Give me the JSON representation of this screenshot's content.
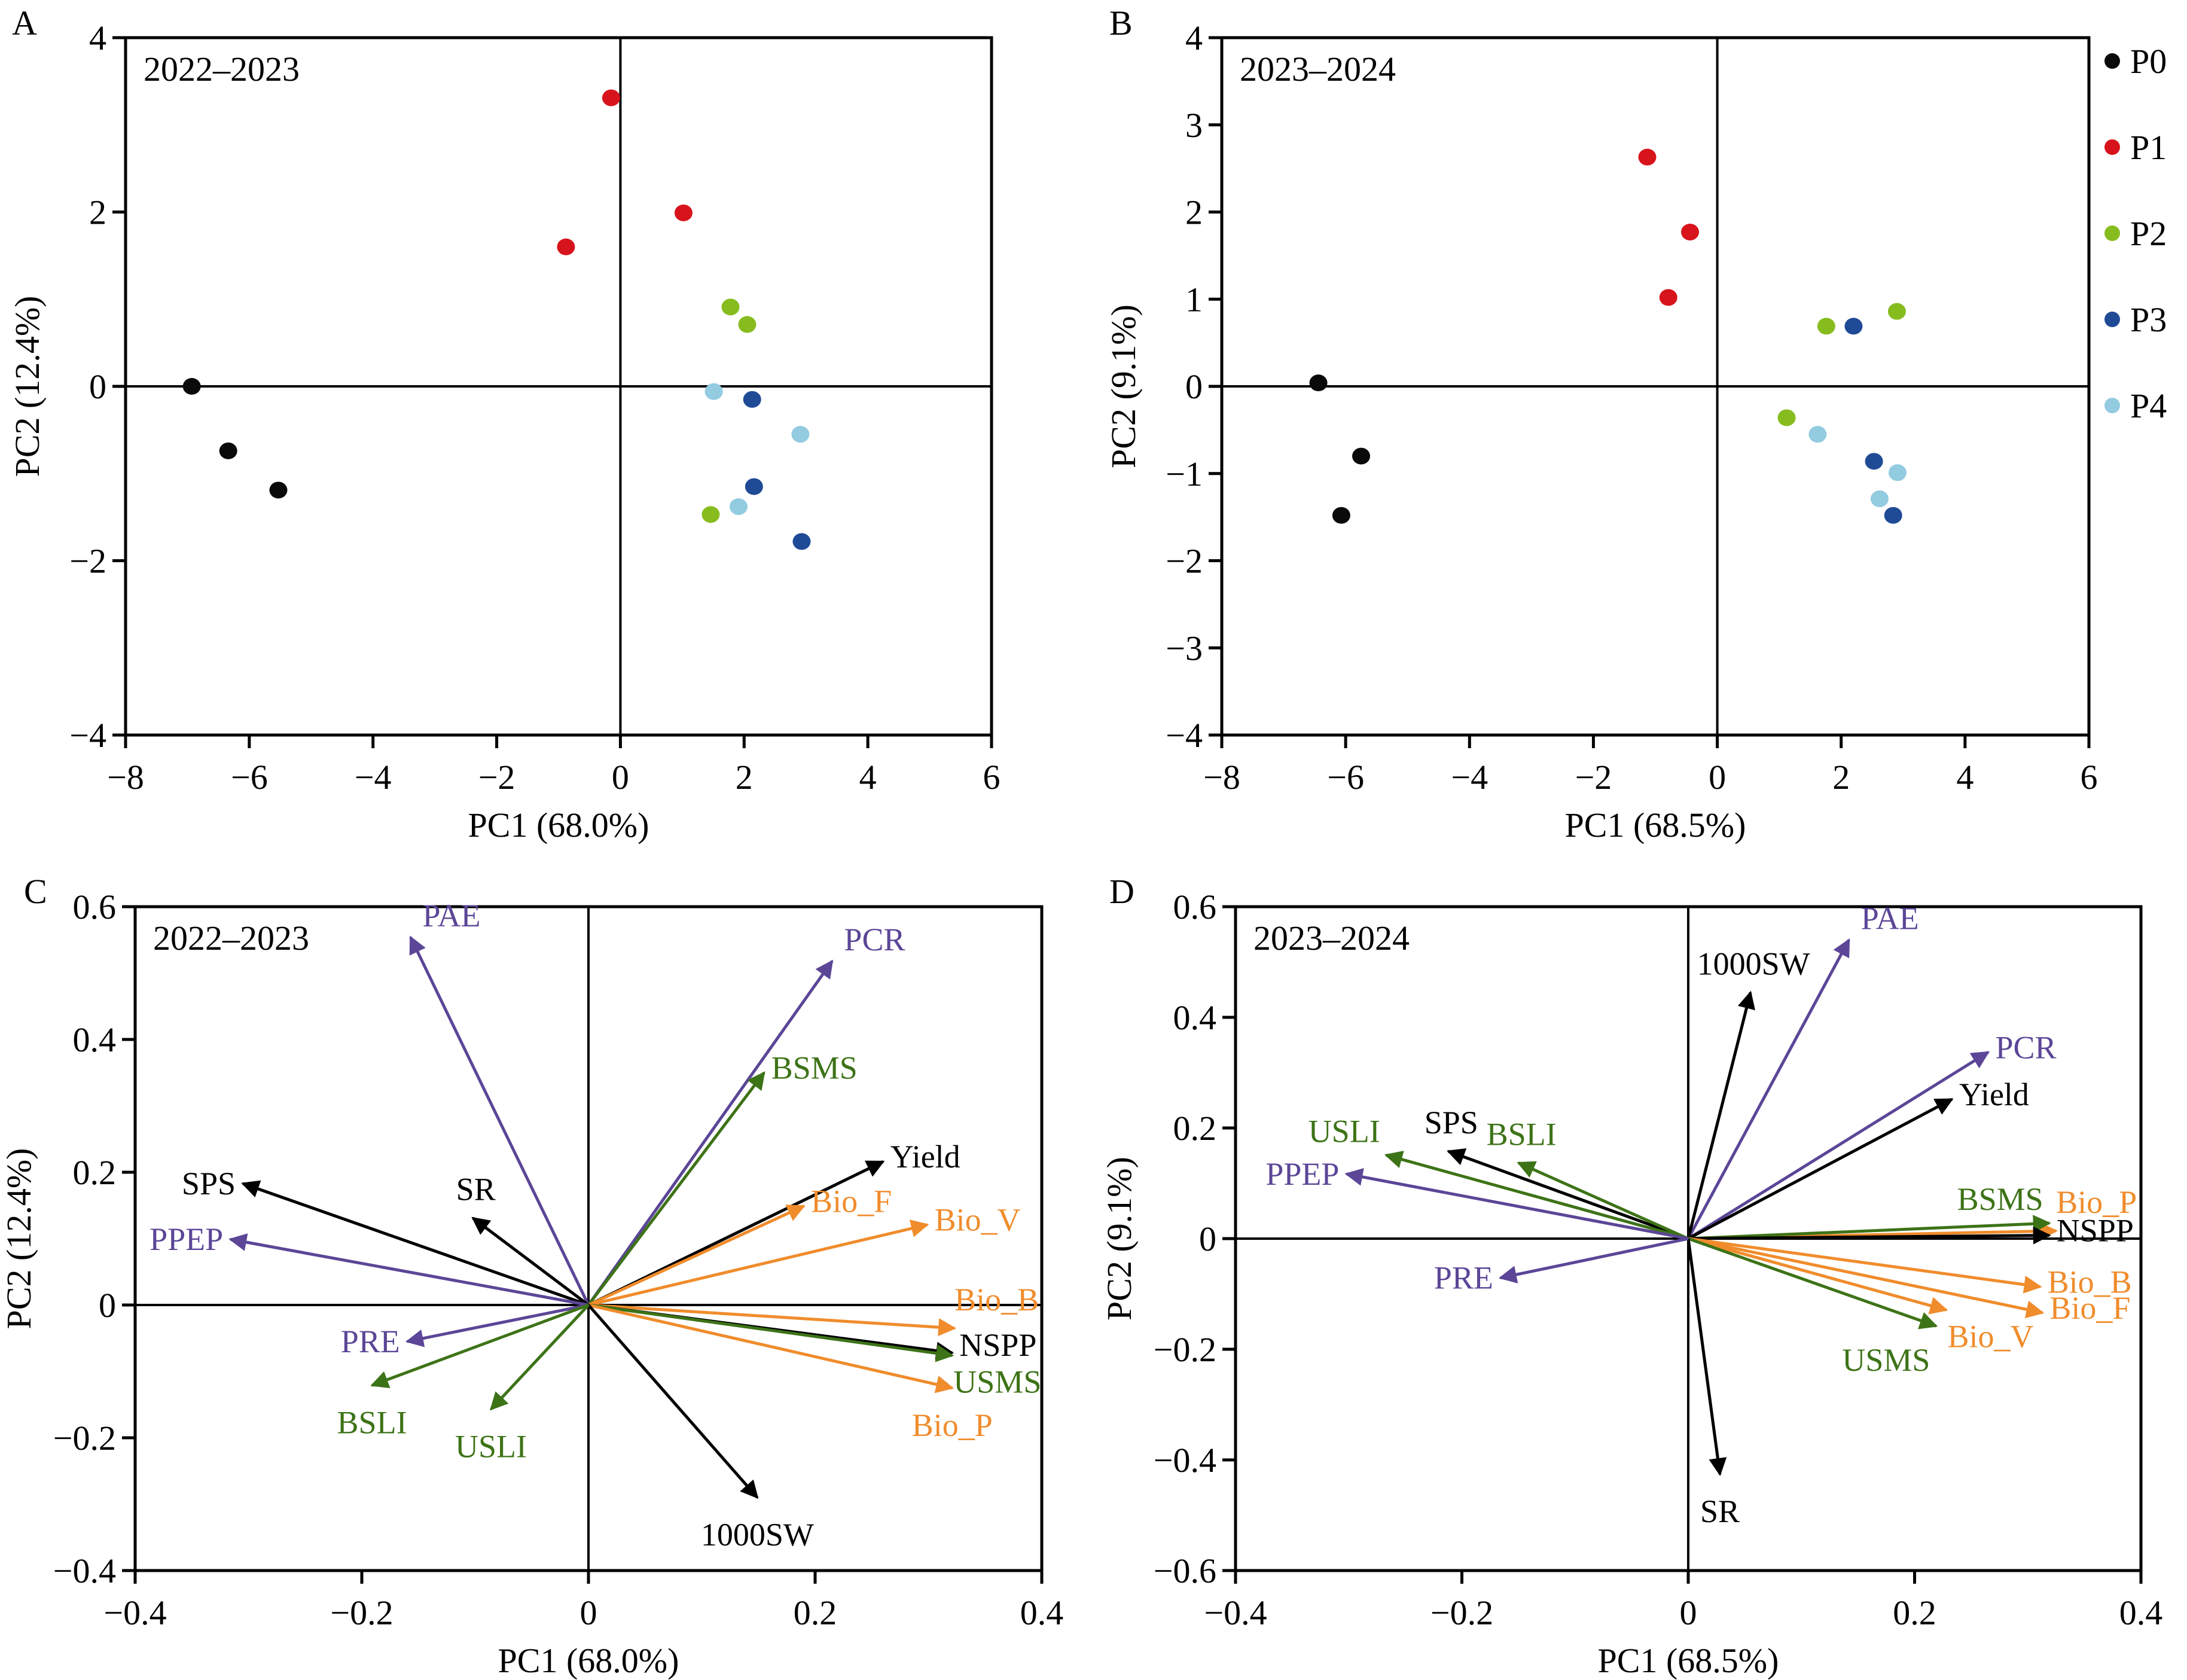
{
  "figure": {
    "colors": {
      "P0": "#0a0a0a",
      "P1": "#d7141c",
      "P2": "#86bc1e",
      "P3": "#1f4a96",
      "P4": "#93cbe0",
      "purple": "#5b4697",
      "green": "#3d7317",
      "orange": "#f08c2c",
      "black": "#000000"
    }
  },
  "chart_data": [
    {
      "panel": "A",
      "type": "scatter",
      "title": "2022–2023",
      "xlabel": "PC1 (68.0%)",
      "ylabel": "PC2 (12.4%)",
      "xlim": [
        -8,
        6
      ],
      "ylim": [
        -4,
        4
      ],
      "xticks": [
        "-8",
        "-6",
        "-4",
        "-2",
        "0",
        "2",
        "4",
        "6"
      ],
      "yticks": [
        "-4",
        "-2",
        "0",
        "2",
        "4"
      ],
      "grid": false,
      "series": [
        {
          "name": "P0",
          "points": [
            [
              -6.93,
              0.0
            ],
            [
              -6.34,
              -0.74
            ],
            [
              -5.53,
              -1.19
            ]
          ]
        },
        {
          "name": "P1",
          "points": [
            [
              -0.15,
              3.31
            ],
            [
              -0.88,
              1.6
            ],
            [
              1.02,
              1.99
            ]
          ]
        },
        {
          "name": "P2",
          "points": [
            [
              1.78,
              0.91
            ],
            [
              2.05,
              0.71
            ],
            [
              1.46,
              -1.47
            ]
          ]
        },
        {
          "name": "P3",
          "points": [
            [
              2.13,
              -0.15
            ],
            [
              2.16,
              -1.15
            ],
            [
              2.93,
              -1.78
            ]
          ]
        },
        {
          "name": "P4",
          "points": [
            [
              1.51,
              -0.06
            ],
            [
              2.91,
              -0.55
            ],
            [
              1.91,
              -1.38
            ]
          ]
        }
      ]
    },
    {
      "panel": "B",
      "type": "scatter",
      "title": "2023–2024",
      "xlabel": "PC1 (68.5%)",
      "ylabel": "PC2 (9.1%)",
      "xlim": [
        -8,
        6
      ],
      "ylim": [
        -4,
        4
      ],
      "xticks": [
        "-8",
        "-6",
        "-4",
        "-2",
        "0",
        "2",
        "4",
        "6"
      ],
      "yticks": [
        "-4",
        "-3",
        "-2",
        "-1",
        "0",
        "1",
        "2",
        "3",
        "4"
      ],
      "grid": false,
      "legend": {
        "placement": "right",
        "entries": [
          "P0",
          "P1",
          "P2",
          "P3",
          "P4"
        ]
      },
      "series": [
        {
          "name": "P0",
          "points": [
            [
              -6.44,
              0.04
            ],
            [
              -5.75,
              -0.8
            ],
            [
              -6.07,
              -1.48
            ]
          ]
        },
        {
          "name": "P1",
          "points": [
            [
              -1.13,
              2.63
            ],
            [
              -0.44,
              1.77
            ],
            [
              -0.79,
              1.02
            ]
          ]
        },
        {
          "name": "P2",
          "points": [
            [
              1.76,
              0.69
            ],
            [
              2.9,
              0.86
            ],
            [
              1.12,
              -0.36
            ]
          ]
        },
        {
          "name": "P3",
          "points": [
            [
              2.2,
              0.69
            ],
            [
              2.53,
              -0.86
            ],
            [
              2.84,
              -1.48
            ]
          ]
        },
        {
          "name": "P4",
          "points": [
            [
              1.62,
              -0.55
            ],
            [
              2.91,
              -0.99
            ],
            [
              2.62,
              -1.29
            ]
          ]
        }
      ]
    },
    {
      "panel": "C",
      "type": "biplot-loadings",
      "title": "2022–2023",
      "xlabel": "PC1 (68.0%)",
      "ylabel": "PC2 (12.4%)",
      "xlim": [
        -0.4,
        0.4
      ],
      "ylim": [
        -0.4,
        0.6
      ],
      "xticks": [
        "-0.4",
        "-0.2",
        "0",
        "0.2",
        "0.4"
      ],
      "yticks": [
        "-0.4",
        "-0.2",
        "0",
        "0.2",
        "0.4",
        "0.6"
      ],
      "grid": false,
      "vectors": [
        {
          "name": "PAE",
          "group": "purple",
          "x": -0.157,
          "y": 0.554,
          "label_at": "tip-up"
        },
        {
          "name": "PCR",
          "group": "purple",
          "x": 0.215,
          "y": 0.518,
          "label_at": "tip-up"
        },
        {
          "name": "BSMS",
          "group": "green",
          "x": 0.155,
          "y": 0.35,
          "label_at": "right"
        },
        {
          "name": "Yield",
          "group": "black",
          "x": 0.26,
          "y": 0.216,
          "label_at": "right"
        },
        {
          "name": "Bio_F",
          "group": "orange",
          "x": 0.19,
          "y": 0.149,
          "label_at": "right"
        },
        {
          "name": "Bio_V",
          "group": "orange",
          "x": 0.299,
          "y": 0.121,
          "label_at": "right"
        },
        {
          "name": "Bio_B",
          "group": "orange",
          "x": 0.323,
          "y": -0.035,
          "label_at": "above-right"
        },
        {
          "name": "NSPP",
          "group": "black",
          "x": 0.321,
          "y": -0.072,
          "label_at": "right-up"
        },
        {
          "name": "USMS",
          "group": "green",
          "x": 0.321,
          "y": -0.076,
          "label_at": "right-down"
        },
        {
          "name": "Bio_P",
          "group": "orange",
          "x": 0.321,
          "y": -0.125,
          "label_at": "below"
        },
        {
          "name": "1000SW",
          "group": "black",
          "x": 0.149,
          "y": -0.29,
          "label_at": "below"
        },
        {
          "name": "SPS",
          "group": "black",
          "x": -0.305,
          "y": 0.183,
          "label_at": "left"
        },
        {
          "name": "SR",
          "group": "black",
          "x": -0.102,
          "y": 0.131,
          "label_at": "above"
        },
        {
          "name": "PPEP",
          "group": "purple",
          "x": -0.316,
          "y": 0.099,
          "label_at": "left"
        },
        {
          "name": "PRE",
          "group": "purple",
          "x": -0.16,
          "y": -0.055,
          "label_at": "left"
        },
        {
          "name": "BSLI",
          "group": "green",
          "x": -0.191,
          "y": -0.121,
          "label_at": "below"
        },
        {
          "name": "USLI",
          "group": "green",
          "x": -0.086,
          "y": -0.157,
          "label_at": "below"
        }
      ]
    },
    {
      "panel": "D",
      "type": "biplot-loadings",
      "title": "2023–2024",
      "xlabel": "PC1 (68.5%)",
      "ylabel": "PC2 (9.1%)",
      "xlim": [
        -0.4,
        0.4
      ],
      "ylim": [
        -0.6,
        0.6
      ],
      "xticks": [
        "-0.4",
        "-0.2",
        "0",
        "0.2",
        "0.4"
      ],
      "yticks": [
        "-0.6",
        "-0.4",
        "-0.2",
        "0",
        "0.2",
        "0.4",
        "0.6"
      ],
      "grid": false,
      "vectors": [
        {
          "name": "PAE",
          "group": "purple",
          "x": 0.142,
          "y": 0.54,
          "label_at": "tip-up"
        },
        {
          "name": "1000SW",
          "group": "black",
          "x": 0.055,
          "y": 0.445,
          "label_at": "above"
        },
        {
          "name": "PCR",
          "group": "purple",
          "x": 0.265,
          "y": 0.337,
          "label_at": "right"
        },
        {
          "name": "Yield",
          "group": "black",
          "x": 0.233,
          "y": 0.252,
          "label_at": "right"
        },
        {
          "name": "Bio_P",
          "group": "orange",
          "x": 0.325,
          "y": 0.014,
          "label_at": "above-right"
        },
        {
          "name": "BSMS",
          "group": "green",
          "x": 0.319,
          "y": 0.028,
          "label_at": "above-left"
        },
        {
          "name": "NSPP",
          "group": "black",
          "x": 0.319,
          "y": 0.006,
          "label_at": "right"
        },
        {
          "name": "Bio_B",
          "group": "orange",
          "x": 0.311,
          "y": -0.087,
          "label_at": "right"
        },
        {
          "name": "Bio_F",
          "group": "orange",
          "x": 0.313,
          "y": -0.134,
          "label_at": "right"
        },
        {
          "name": "Bio_V",
          "group": "orange",
          "x": 0.228,
          "y": -0.129,
          "label_at": "right-down"
        },
        {
          "name": "USMS",
          "group": "green",
          "x": 0.219,
          "y": -0.158,
          "label_at": "below-left"
        },
        {
          "name": "SR",
          "group": "black",
          "x": 0.028,
          "y": -0.426,
          "label_at": "below"
        },
        {
          "name": "SPS",
          "group": "black",
          "x": -0.212,
          "y": 0.158,
          "label_at": "above"
        },
        {
          "name": "USLI",
          "group": "green",
          "x": -0.267,
          "y": 0.151,
          "label_at": "above-left"
        },
        {
          "name": "BSLI",
          "group": "green",
          "x": -0.15,
          "y": 0.137,
          "label_at": "above"
        },
        {
          "name": "PPEP",
          "group": "purple",
          "x": -0.302,
          "y": 0.117,
          "label_at": "left"
        },
        {
          "name": "PRE",
          "group": "purple",
          "x": -0.166,
          "y": -0.071,
          "label_at": "left"
        }
      ]
    }
  ]
}
